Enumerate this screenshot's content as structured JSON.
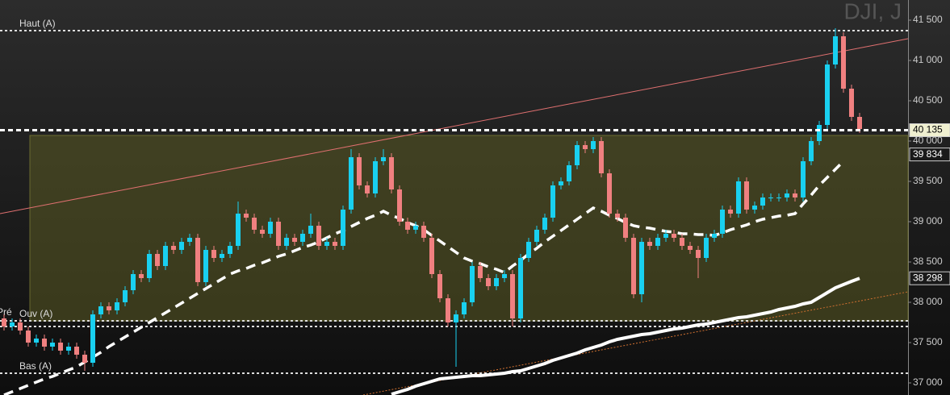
{
  "chart_data": {
    "type": "candlestick",
    "title": "DJI, J",
    "ylim": [
      36850,
      41750
    ],
    "yticks": [
      {
        "value": 37000,
        "label": "37 000"
      },
      {
        "value": 37500,
        "label": "37 500"
      },
      {
        "value": 38000,
        "label": "38 000"
      },
      {
        "value": 38500,
        "label": "38 500"
      },
      {
        "value": 39000,
        "label": "39 000"
      },
      {
        "value": 39500,
        "label": "39 500"
      },
      {
        "value": 40000,
        "label": "40 000"
      },
      {
        "value": 40500,
        "label": "40 500"
      },
      {
        "value": 41000,
        "label": "41 000"
      },
      {
        "value": 41500,
        "label": "41 500"
      }
    ],
    "up_color": "#19d0f0",
    "down_color": "#f08080",
    "open": [
      37800,
      37700,
      37750,
      37650,
      37500,
      37550,
      37450,
      37500,
      37400,
      37450,
      37350,
      37250,
      37850,
      37950,
      37900,
      38000,
      38150,
      38350,
      38300,
      38600,
      38450,
      38700,
      38650,
      38750,
      38800,
      38250,
      38650,
      38550,
      38600,
      38700,
      39100,
      39050,
      38900,
      38850,
      39000,
      38700,
      38800,
      38750,
      38850,
      38950,
      38700,
      38750,
      38700,
      39150,
      39800,
      39450,
      39350,
      39750,
      39800,
      39400,
      39000,
      38900,
      38950,
      38800,
      38350,
      38050,
      37750,
      37850,
      38000,
      38450,
      38300,
      38200,
      38300,
      38350,
      37800,
      38550,
      38750,
      38900,
      39050,
      39450,
      39500,
      39700,
      39950,
      39900,
      40000,
      39600,
      39100,
      39050,
      38800,
      38100,
      38750,
      38700,
      38800,
      38850,
      38800,
      38700,
      38650,
      38550,
      38800,
      38850,
      39150,
      39100,
      39500,
      39150,
      39200,
      39300,
      39300,
      39300,
      39350,
      39300,
      39750,
      40000,
      40200,
      40950,
      41300,
      40650,
      40300
    ],
    "high": [
      37850,
      37800,
      37800,
      37700,
      37600,
      37600,
      37550,
      37550,
      37500,
      37500,
      37400,
      37900,
      38000,
      38000,
      38050,
      38200,
      38400,
      38400,
      38650,
      38650,
      38750,
      38750,
      38800,
      38850,
      38850,
      38700,
      38700,
      38650,
      38750,
      39250,
      39150,
      39100,
      38950,
      39050,
      39050,
      38850,
      38850,
      38900,
      39100,
      39000,
      38800,
      38800,
      39200,
      39900,
      39850,
      39500,
      39800,
      39900,
      39850,
      39450,
      39050,
      39000,
      39000,
      38850,
      38400,
      38100,
      37900,
      38050,
      38500,
      38500,
      38350,
      38350,
      38400,
      38400,
      38600,
      38800,
      38950,
      39100,
      39500,
      39550,
      39750,
      40000,
      40000,
      40050,
      40050,
      39650,
      39150,
      39100,
      38850,
      38800,
      38800,
      38850,
      38900,
      38900,
      38850,
      38750,
      38700,
      38850,
      38900,
      39200,
      39200,
      39550,
      39550,
      39250,
      39350,
      39350,
      39350,
      39400,
      39400,
      39800,
      40050,
      40250,
      41000,
      41400,
      41350,
      40700,
      40350
    ],
    "low": [
      37650,
      37650,
      37600,
      37450,
      37450,
      37400,
      37400,
      37350,
      37350,
      37300,
      37150,
      37200,
      37800,
      37850,
      37850,
      37950,
      38100,
      38250,
      38250,
      38400,
      38400,
      38600,
      38600,
      38700,
      38200,
      38200,
      38500,
      38500,
      38550,
      38650,
      39000,
      38850,
      38800,
      38800,
      38650,
      38650,
      38700,
      38700,
      38800,
      38650,
      38650,
      38650,
      38650,
      39100,
      39400,
      39300,
      39300,
      39700,
      39350,
      38950,
      38850,
      38850,
      38750,
      38300,
      38000,
      37700,
      37200,
      37800,
      37950,
      38250,
      38150,
      38150,
      38250,
      37700,
      37750,
      38500,
      38700,
      38850,
      39000,
      39400,
      39450,
      39650,
      39850,
      39850,
      39550,
      39050,
      39000,
      38750,
      38050,
      38000,
      38650,
      38650,
      38750,
      38750,
      38650,
      38600,
      38300,
      38500,
      38750,
      38800,
      39050,
      39050,
      39100,
      39100,
      39150,
      39250,
      39250,
      39250,
      39250,
      39250,
      39700,
      39950,
      40150,
      40900,
      40600,
      40250,
      40100
    ],
    "close": [
      37700,
      37750,
      37650,
      37500,
      37550,
      37450,
      37500,
      37400,
      37450,
      37350,
      37250,
      37850,
      37950,
      37900,
      38000,
      38150,
      38350,
      38300,
      38600,
      38450,
      38700,
      38650,
      38750,
      38800,
      38250,
      38650,
      38550,
      38600,
      38700,
      39100,
      39050,
      38900,
      38850,
      39000,
      38700,
      38800,
      38750,
      38850,
      38950,
      38700,
      38750,
      38700,
      39150,
      39800,
      39450,
      39350,
      39750,
      39800,
      39400,
      39000,
      38900,
      38950,
      38800,
      38350,
      38050,
      37750,
      37850,
      38000,
      38450,
      38300,
      38200,
      38300,
      38350,
      37800,
      38550,
      38750,
      38900,
      39050,
      39450,
      39500,
      39700,
      39950,
      39900,
      40000,
      39600,
      39100,
      39050,
      38800,
      38100,
      38750,
      38700,
      38800,
      38850,
      38800,
      38700,
      38650,
      38550,
      38800,
      38850,
      39150,
      39100,
      39500,
      39150,
      39200,
      39300,
      39300,
      39300,
      39350,
      39300,
      39750,
      40000,
      40200,
      40950,
      41300,
      40650,
      40300,
      40150
    ],
    "ma_short": [
      36850,
      36890,
      36930,
      36970,
      37010,
      37050,
      37080,
      37120,
      37160,
      37200,
      37260,
      37320,
      37380,
      37450,
      37510,
      37570,
      37630,
      37690,
      37750,
      37810,
      37870,
      37930,
      37990,
      38050,
      38110,
      38170,
      38230,
      38290,
      38350,
      38390,
      38420,
      38460,
      38490,
      38530,
      38570,
      38600,
      38640,
      38680,
      38710,
      38750,
      38800,
      38850,
      38890,
      38940,
      38990,
      39040,
      39080,
      39130,
      39080,
      39040,
      38990,
      38950,
      38900,
      38830,
      38760,
      38690,
      38620,
      38550,
      38510,
      38480,
      38440,
      38410,
      38370,
      38450,
      38520,
      38600,
      38670,
      38750,
      38820,
      38890,
      38960,
      39030,
      39100,
      39170,
      39130,
      39080,
      39040,
      38990,
      38950,
      38930,
      38920,
      38900,
      38880,
      38870,
      38850,
      38850,
      38840,
      38840,
      38830,
      38860,
      38900,
      38930,
      38960,
      39000,
      39030,
      39050,
      39070,
      39080,
      39100,
      39220,
      39330,
      39450,
      39550,
      39650,
      39750,
      null,
      null
    ],
    "ma_long": [
      null,
      null,
      null,
      null,
      null,
      null,
      null,
      null,
      null,
      null,
      null,
      null,
      null,
      null,
      null,
      null,
      null,
      null,
      null,
      null,
      null,
      null,
      null,
      null,
      null,
      null,
      null,
      null,
      null,
      null,
      null,
      null,
      null,
      null,
      null,
      null,
      null,
      null,
      null,
      null,
      null,
      null,
      null,
      null,
      null,
      null,
      null,
      null,
      36860,
      36890,
      36920,
      36960,
      36990,
      37020,
      37050,
      37060,
      37070,
      37080,
      37090,
      37090,
      37100,
      37110,
      37120,
      37140,
      37150,
      37180,
      37210,
      37240,
      37280,
      37310,
      37340,
      37370,
      37410,
      37440,
      37470,
      37510,
      37540,
      37560,
      37580,
      37600,
      37610,
      37630,
      37650,
      37670,
      37680,
      37700,
      37720,
      37730,
      37750,
      37770,
      37790,
      37810,
      37820,
      37840,
      37860,
      37880,
      37910,
      37930,
      37950,
      37980,
      38000,
      38060,
      38120,
      38180,
      38220,
      38260,
      38298
    ],
    "zone": [
      37770,
      40070
    ],
    "levels": [
      {
        "label": "Haut (A)",
        "value": 41370
      },
      {
        "label": "Pré",
        "value": 37700
      },
      {
        "label": "Ouv (A)",
        "value": 37770
      },
      {
        "label": "Bas (A)",
        "value": 37120
      }
    ],
    "markers": [
      {
        "value": 40135,
        "label": "40 135"
      },
      {
        "value": 39834,
        "label": "39 834"
      },
      {
        "value": 38298,
        "label": "38 298"
      }
    ],
    "trendlines": [
      {
        "color": "#e07070",
        "from": [
          -0.5,
          39100
        ],
        "to": [
          112,
          41270
        ]
      },
      {
        "color": "#d07030",
        "from": [
          44.5,
          36850
        ],
        "to": [
          112,
          38130
        ]
      }
    ]
  }
}
